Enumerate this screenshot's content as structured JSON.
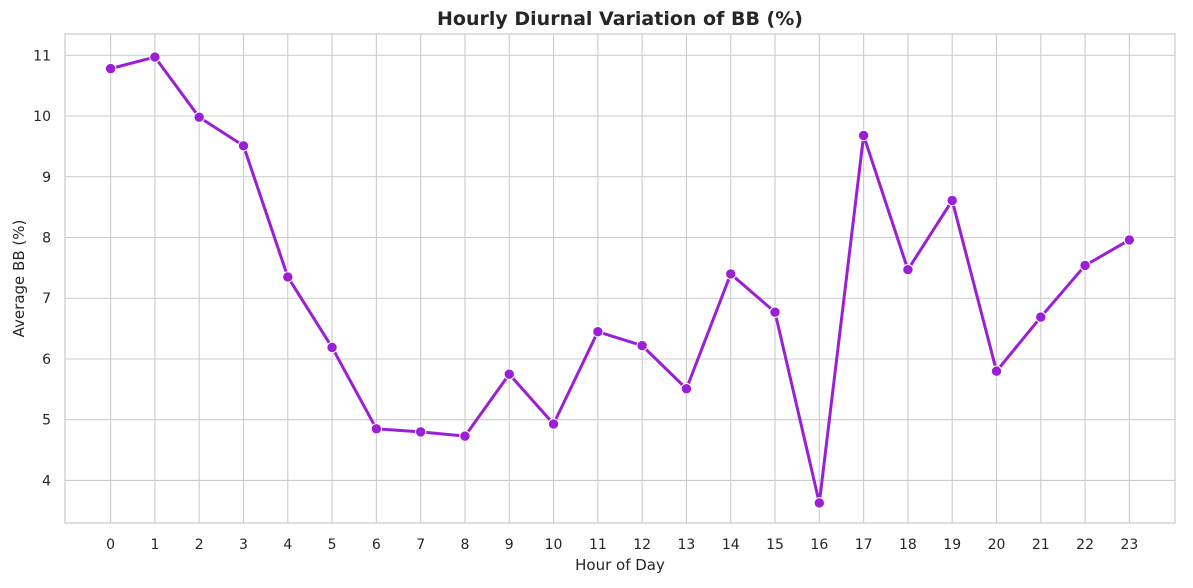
{
  "chart_data": {
    "type": "line",
    "title": "Hourly Diurnal Variation of BB (%)",
    "xlabel": "Hour of Day",
    "ylabel": "Average BB (%)",
    "x": [
      0,
      1,
      2,
      3,
      4,
      5,
      6,
      7,
      8,
      9,
      10,
      11,
      12,
      13,
      14,
      15,
      16,
      17,
      18,
      19,
      20,
      21,
      22,
      23
    ],
    "x_tick_labels": [
      "0",
      "1",
      "2",
      "3",
      "4",
      "5",
      "6",
      "7",
      "8",
      "9",
      "10",
      "11",
      "12",
      "13",
      "14",
      "15",
      "16",
      "17",
      "18",
      "19",
      "20",
      "21",
      "22",
      "23"
    ],
    "y_ticks": [
      4,
      5,
      6,
      7,
      8,
      9,
      10,
      11
    ],
    "y_tick_labels": [
      "4",
      "5",
      "6",
      "7",
      "8",
      "9",
      "10",
      "11"
    ],
    "xlim": [
      -1.03,
      24.03
    ],
    "ylim": [
      3.3,
      11.35
    ],
    "grid": true,
    "legend": false,
    "colors": {
      "line": "#9a1fd6",
      "grid": "#cccccc",
      "background": "#ffffff"
    },
    "series": [
      {
        "values": [
          10.78,
          10.97,
          9.98,
          9.51,
          7.35,
          6.19,
          4.85,
          4.8,
          4.73,
          5.75,
          4.93,
          6.45,
          6.22,
          5.51,
          7.4,
          6.77,
          3.63,
          9.68,
          7.47,
          8.61,
          5.8,
          6.69,
          7.54,
          7.96
        ]
      }
    ]
  }
}
